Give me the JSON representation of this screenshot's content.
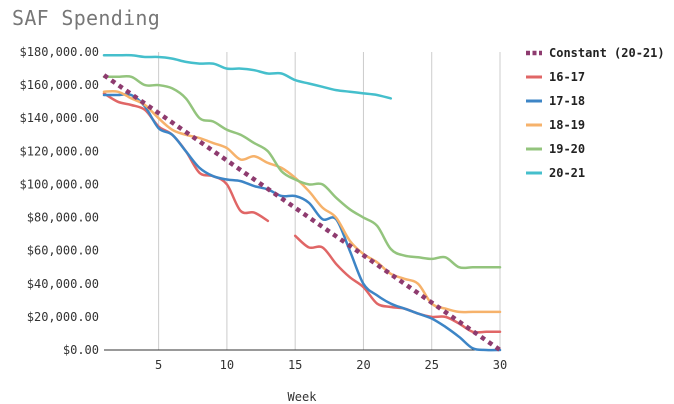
{
  "chart_data": {
    "type": "line",
    "title": "SAF Spending",
    "xlabel": "Week",
    "ylabel": "",
    "xlim": [
      1,
      30
    ],
    "ylim": [
      0,
      180000
    ],
    "x_ticks": [
      5,
      10,
      15,
      20,
      25,
      30
    ],
    "x_tick_labels": [
      "5",
      "10",
      "15",
      "20",
      "25",
      "30"
    ],
    "y_ticks": [
      0,
      20000,
      40000,
      60000,
      80000,
      100000,
      120000,
      140000,
      160000,
      180000
    ],
    "y_tick_labels": [
      "$0.00",
      "$20,000.00",
      "$40,000.00",
      "$60,000.00",
      "$80,000.00",
      "$100,000.00",
      "$120,000.00",
      "$140,000.00",
      "$160,000.00",
      "$180,000.00"
    ],
    "grid": "vertical",
    "legend_position": "right",
    "series": [
      {
        "name": "Constant (20-21)",
        "color": "#8e3b6f",
        "style": "dotted",
        "x": [
          1,
          30
        ],
        "values": [
          166000,
          0
        ]
      },
      {
        "name": "16-17",
        "color": "#e06666",
        "style": "solid",
        "x": [
          1,
          2,
          3,
          4,
          5,
          6,
          7,
          8,
          9,
          10,
          11,
          12,
          13,
          null,
          15,
          16,
          17,
          18,
          19,
          20,
          21,
          22,
          23,
          24,
          25,
          26,
          27,
          28,
          29,
          30
        ],
        "values": [
          155000,
          150000,
          148000,
          145000,
          135000,
          130000,
          120000,
          107000,
          105000,
          100000,
          84000,
          83000,
          78000,
          null,
          69000,
          62000,
          62000,
          52000,
          44000,
          38000,
          28000,
          26000,
          25000,
          22000,
          20000,
          20000,
          16000,
          11000,
          11000,
          11000
        ]
      },
      {
        "name": "17-18",
        "color": "#3d85c6",
        "style": "solid",
        "x": [
          1,
          2,
          3,
          4,
          5,
          6,
          7,
          8,
          9,
          10,
          11,
          12,
          13,
          14,
          15,
          16,
          17,
          18,
          19,
          20,
          21,
          22,
          23,
          24,
          25,
          26,
          27,
          28,
          29,
          30
        ],
        "values": [
          154000,
          154000,
          154000,
          147000,
          134000,
          130000,
          120000,
          110000,
          105000,
          103000,
          102000,
          99000,
          97000,
          93000,
          93000,
          89000,
          79000,
          79000,
          60000,
          40000,
          33000,
          28000,
          25000,
          22000,
          19000,
          14000,
          8000,
          1000,
          0,
          0
        ]
      },
      {
        "name": "18-19",
        "color": "#f6b26b",
        "style": "solid",
        "x": [
          1,
          2,
          3,
          4,
          5,
          6,
          7,
          8,
          9,
          10,
          11,
          12,
          13,
          14,
          15,
          16,
          17,
          18,
          19,
          20,
          21,
          22,
          23,
          24,
          25,
          26,
          27,
          28,
          29,
          30
        ],
        "values": [
          156000,
          156000,
          152000,
          148000,
          140000,
          133000,
          130000,
          128000,
          125000,
          122000,
          115000,
          117000,
          113000,
          110000,
          104000,
          96000,
          86000,
          80000,
          66000,
          58000,
          53000,
          46000,
          43000,
          40000,
          28000,
          25000,
          23000,
          23000,
          23000,
          23000
        ]
      },
      {
        "name": "19-20",
        "color": "#93c47d",
        "style": "solid",
        "x": [
          1,
          2,
          3,
          4,
          5,
          6,
          7,
          8,
          9,
          10,
          11,
          12,
          13,
          14,
          15,
          16,
          17,
          18,
          19,
          20,
          21,
          22,
          23,
          24,
          25,
          26,
          27,
          28,
          29,
          30
        ],
        "values": [
          165000,
          165000,
          165000,
          160000,
          160000,
          158000,
          152000,
          140000,
          138000,
          133000,
          130000,
          125000,
          120000,
          108000,
          103000,
          100000,
          100000,
          92000,
          85000,
          80000,
          75000,
          61000,
          57000,
          56000,
          55000,
          56000,
          50000,
          50000,
          50000,
          50000
        ]
      },
      {
        "name": "20-21",
        "color": "#45bfcc",
        "style": "solid",
        "x": [
          1,
          2,
          3,
          4,
          5,
          6,
          7,
          8,
          9,
          10,
          11,
          12,
          13,
          14,
          15,
          16,
          17,
          18,
          19,
          20,
          21,
          22
        ],
        "values": [
          178000,
          178000,
          178000,
          177000,
          177000,
          176000,
          174000,
          173000,
          173000,
          170000,
          170000,
          169000,
          167000,
          167000,
          163000,
          161000,
          159000,
          157000,
          156000,
          155000,
          154000,
          152000
        ]
      }
    ]
  }
}
